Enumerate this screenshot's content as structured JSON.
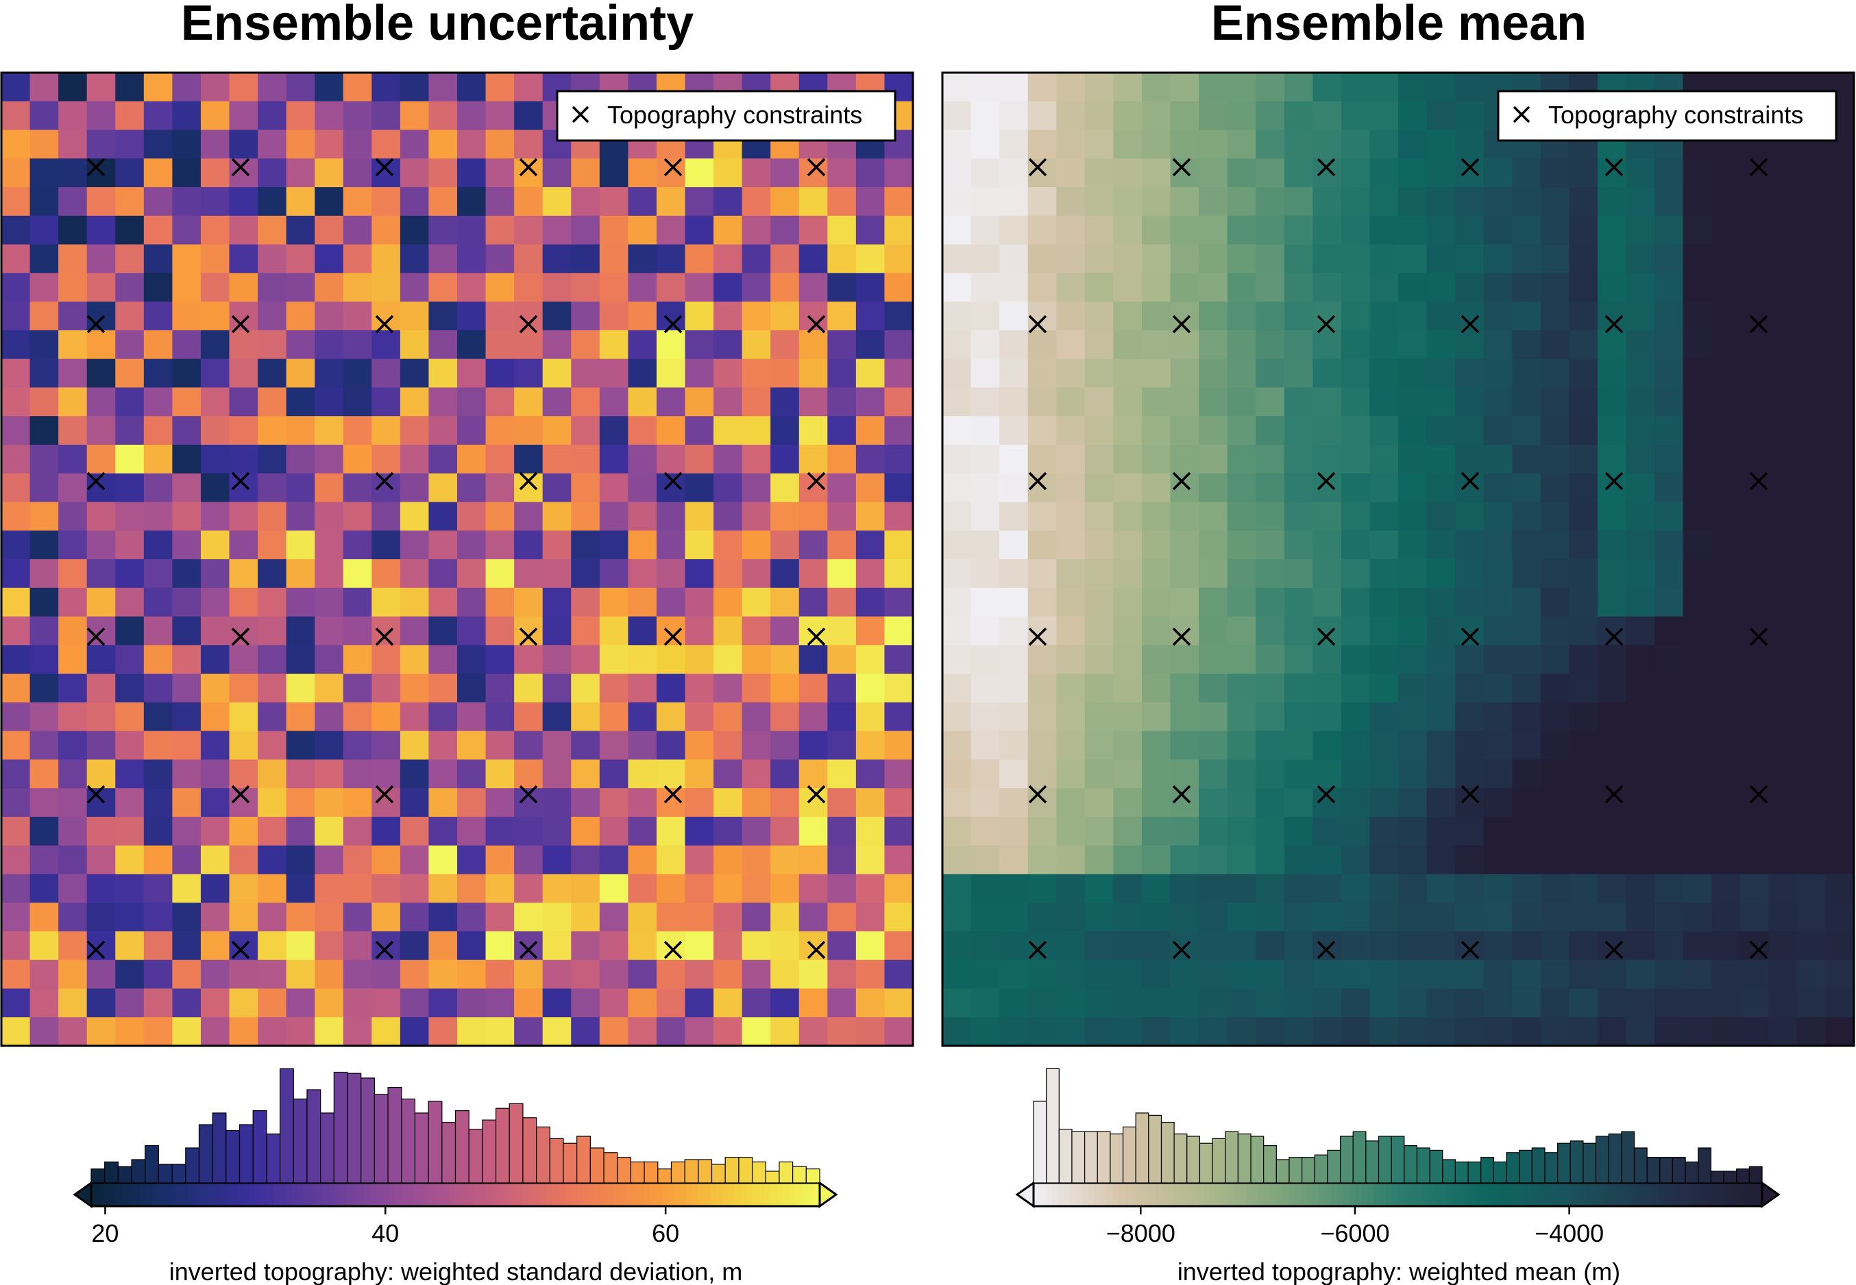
{
  "chart_data": [
    {
      "type": "heatmap",
      "title": "Ensemble uncertainty",
      "colormap": "plasma-like (dark navy → purple → pink → orange → yellow)",
      "color_stops": [
        "#0a2438",
        "#1b2f6e",
        "#3a2f9c",
        "#6a3f9a",
        "#9b4f95",
        "#c75f7e",
        "#ec7a5a",
        "#f99a3d",
        "#f4d03f",
        "#f2f75c"
      ],
      "value_range": [
        19,
        71
      ],
      "grid_cells": [
        32,
        34
      ],
      "pattern": "spatially random noise, lower values on left, higher values near lower-right",
      "legend": {
        "label": "Topography constraints",
        "marker": "×"
      },
      "constraint_grid": {
        "columns": 6,
        "rows": 6
      },
      "colorbar": {
        "label": "inverted topography: weighted standard deviation, m",
        "ticks": [
          "20",
          "40",
          "60"
        ],
        "tick_values": [
          20,
          40,
          60
        ],
        "range": [
          19,
          71
        ],
        "extend": "both",
        "histogram": [
          0.12,
          0.18,
          0.14,
          0.2,
          0.32,
          0.16,
          0.16,
          0.3,
          0.5,
          0.6,
          0.45,
          0.5,
          0.62,
          0.42,
          0.98,
          0.72,
          0.8,
          0.6,
          0.95,
          0.94,
          0.9,
          0.76,
          0.82,
          0.72,
          0.6,
          0.7,
          0.52,
          0.62,
          0.46,
          0.54,
          0.64,
          0.68,
          0.56,
          0.48,
          0.38,
          0.34,
          0.4,
          0.3,
          0.26,
          0.22,
          0.18,
          0.18,
          0.12,
          0.18,
          0.2,
          0.2,
          0.16,
          0.22,
          0.22,
          0.18,
          0.1,
          0.18,
          0.14,
          0.12
        ]
      }
    },
    {
      "type": "heatmap",
      "title": "Ensemble mean",
      "colormap": "rain-like (light grey → tan → sage green → teal → dark navy)",
      "color_stops": [
        "#f0eff4",
        "#d6c4a8",
        "#a8b78a",
        "#6d9d78",
        "#2e7d6e",
        "#0e6660",
        "#1b4f5a",
        "#22304a",
        "#221d35"
      ],
      "value_range": [
        -9000,
        -2200
      ],
      "grid_cells": [
        32,
        34
      ],
      "legend": {
        "label": "Topography constraints",
        "marker": "×"
      },
      "constraint_grid": {
        "columns": 6,
        "rows": 6
      },
      "colorbar": {
        "label": "inverted topography: weighted mean (m)",
        "ticks": [
          "−8000",
          "−6000",
          "−4000"
        ],
        "tick_values": [
          -8000,
          -6000,
          -4000
        ],
        "range": [
          -9000,
          -2200
        ],
        "extend": "both",
        "histogram": [
          0.7,
          0.98,
          0.46,
          0.44,
          0.44,
          0.44,
          0.42,
          0.48,
          0.6,
          0.58,
          0.52,
          0.42,
          0.4,
          0.34,
          0.38,
          0.44,
          0.42,
          0.4,
          0.32,
          0.2,
          0.22,
          0.22,
          0.24,
          0.28,
          0.4,
          0.44,
          0.36,
          0.4,
          0.4,
          0.32,
          0.3,
          0.28,
          0.2,
          0.18,
          0.18,
          0.22,
          0.18,
          0.26,
          0.28,
          0.3,
          0.26,
          0.34,
          0.36,
          0.34,
          0.4,
          0.42,
          0.44,
          0.3,
          0.22,
          0.22,
          0.22,
          0.18,
          0.3,
          0.1,
          0.1,
          0.12,
          0.14
        ]
      }
    }
  ]
}
